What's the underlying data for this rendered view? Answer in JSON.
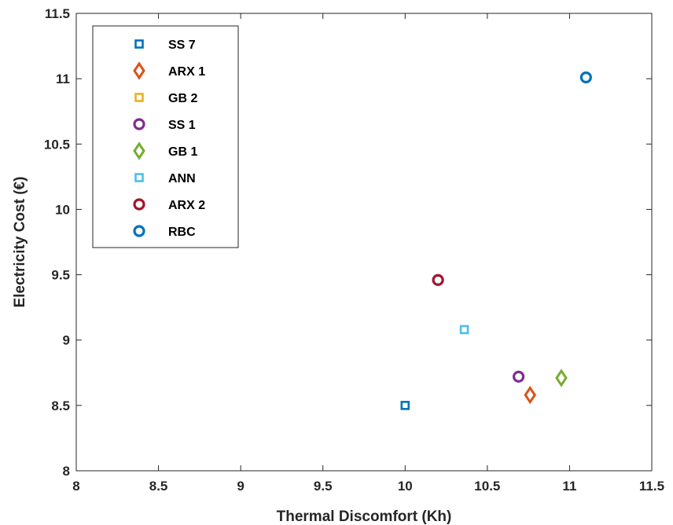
{
  "chart_data": {
    "type": "scatter",
    "title": "",
    "xlabel": "Thermal Discomfort (Kh)",
    "ylabel": "Electricity Cost (€)",
    "xlim": [
      8,
      11.5
    ],
    "ylim": [
      8,
      11.5
    ],
    "xticks": [
      "8",
      "8.5",
      "9",
      "9.5",
      "10",
      "10.5",
      "11",
      "11.5"
    ],
    "yticks": [
      "8",
      "8.5",
      "9",
      "9.5",
      "10",
      "10.5",
      "11",
      "11.5"
    ],
    "grid": false,
    "legend_position": "top-left",
    "series": [
      {
        "name": "SS 7",
        "marker": "square",
        "color": "#0072BD",
        "x": 10.0,
        "y": 8.5
      },
      {
        "name": "ARX 1",
        "marker": "diamond",
        "color": "#D95319",
        "x": 10.76,
        "y": 8.58
      },
      {
        "name": "GB 2",
        "marker": "square",
        "color": "#EDB120",
        "x": null,
        "y": null
      },
      {
        "name": "SS 1",
        "marker": "circle",
        "color": "#7E2F8E",
        "x": 10.69,
        "y": 8.72
      },
      {
        "name": "GB 1",
        "marker": "diamond",
        "color": "#77AC30",
        "x": 10.95,
        "y": 8.71
      },
      {
        "name": "ANN",
        "marker": "square",
        "color": "#4DBEEE",
        "x": 10.36,
        "y": 9.08
      },
      {
        "name": "ARX 2",
        "marker": "circle",
        "color": "#A2142F",
        "x": 10.2,
        "y": 9.46
      },
      {
        "name": "RBC",
        "marker": "circle",
        "color": "#0072BD",
        "x": 11.1,
        "y": 11.01
      }
    ]
  }
}
